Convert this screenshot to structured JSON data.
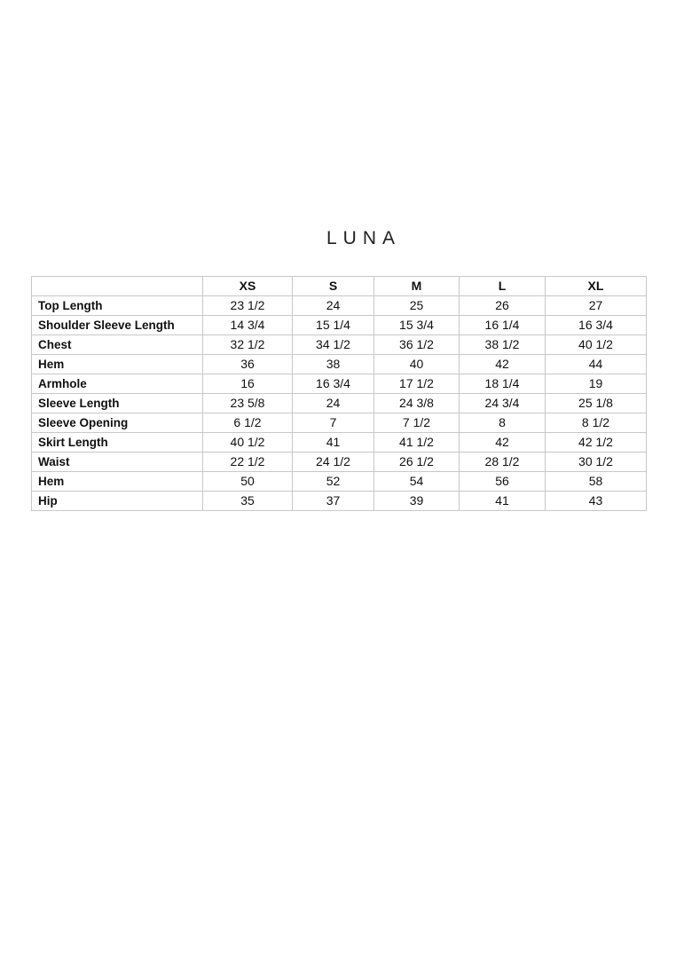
{
  "title": "LUNA",
  "table": {
    "columns": [
      "",
      "XS",
      "S",
      "M",
      "L",
      "XL"
    ],
    "rows": [
      {
        "label": "Top Length",
        "values": [
          "23 1/2",
          "24",
          "25",
          "26",
          "27"
        ]
      },
      {
        "label": "Shoulder Sleeve Length",
        "values": [
          "14 3/4",
          "15 1/4",
          "15 3/4",
          "16 1/4",
          "16 3/4"
        ]
      },
      {
        "label": "Chest",
        "values": [
          "32 1/2",
          "34 1/2",
          "36 1/2",
          "38 1/2",
          "40 1/2"
        ]
      },
      {
        "label": "Hem",
        "values": [
          "36",
          "38",
          "40",
          "42",
          "44"
        ]
      },
      {
        "label": "Armhole",
        "values": [
          "16",
          "16 3/4",
          "17 1/2",
          "18 1/4",
          "19"
        ]
      },
      {
        "label": "Sleeve Length",
        "values": [
          "23 5/8",
          "24",
          "24 3/8",
          "24 3/4",
          "25 1/8"
        ]
      },
      {
        "label": "Sleeve Opening",
        "values": [
          "6 1/2",
          "7",
          "7 1/2",
          "8",
          "8 1/2"
        ]
      },
      {
        "label": "Skirt Length",
        "values": [
          "40 1/2",
          "41",
          "41 1/2",
          "42",
          "42 1/2"
        ]
      },
      {
        "label": "Waist",
        "values": [
          "22 1/2",
          "24 1/2",
          "26 1/2",
          "28 1/2",
          "30 1/2"
        ]
      },
      {
        "label": "Hem",
        "values": [
          "50",
          "52",
          "54",
          "56",
          "58"
        ]
      },
      {
        "label": "Hip",
        "values": [
          "35",
          "37",
          "39",
          "41",
          "43"
        ]
      }
    ]
  }
}
